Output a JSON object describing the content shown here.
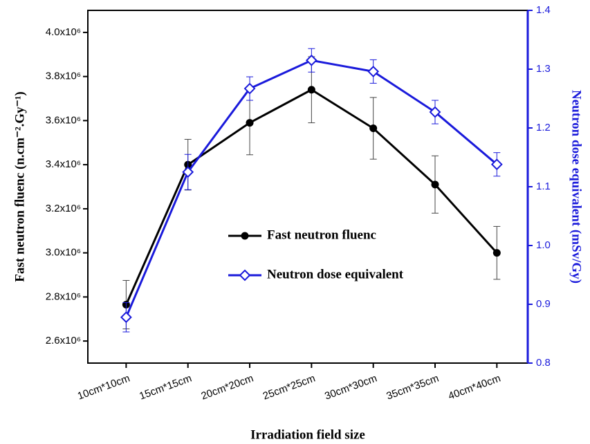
{
  "chart_data": {
    "type": "line",
    "x_label": "Irradiation field size",
    "y_label": "Fast neutron fluenc (n.cm⁻².Gy⁻¹)",
    "y2_label": "Neutron dose equivalent (mSv/Gy)",
    "categories": [
      "10cm*10cm",
      "15cm*15cm",
      "20cm*20cm",
      "25cm*25cm",
      "30cm*30cm",
      "35cm*35cm",
      "40cm*40cm"
    ],
    "ylim": [
      2500000,
      4100000
    ],
    "yticks": [
      {
        "value": 2600000,
        "label": "2.6x10⁶"
      },
      {
        "value": 2800000,
        "label": "2.8x10⁶"
      },
      {
        "value": 3000000,
        "label": "3.0x10⁶"
      },
      {
        "value": 3200000,
        "label": "3.2x10⁶"
      },
      {
        "value": 3400000,
        "label": "3.4x10⁶"
      },
      {
        "value": 3600000,
        "label": "3.6x10⁶"
      },
      {
        "value": 3800000,
        "label": "3.8x10⁶"
      },
      {
        "value": 4000000,
        "label": "4.0x10⁶"
      }
    ],
    "y2lim": [
      0.8,
      1.4
    ],
    "y2ticks": [
      0.8,
      0.9,
      1.0,
      1.1,
      1.2,
      1.3,
      1.4
    ],
    "y2_color": "#1a1adb",
    "legend": "center",
    "series": [
      {
        "name": "Fast neutron fluenc",
        "color": "#000000",
        "marker": "circle",
        "values": [
          2765000,
          3400000,
          3590000,
          3740000,
          3565000,
          3310000,
          3000000
        ],
        "errors": [
          110000,
          115000,
          145000,
          150000,
          140000,
          130000,
          120000
        ]
      },
      {
        "name": "Neutron dose equivalent",
        "color": "#1a1adb",
        "marker": "diamond",
        "axis": "y2",
        "values": [
          0.878,
          1.125,
          1.267,
          1.315,
          1.296,
          1.227,
          1.138
        ],
        "errors": [
          0.025,
          0.03,
          0.02,
          0.02,
          0.02,
          0.02,
          0.02
        ]
      }
    ]
  }
}
